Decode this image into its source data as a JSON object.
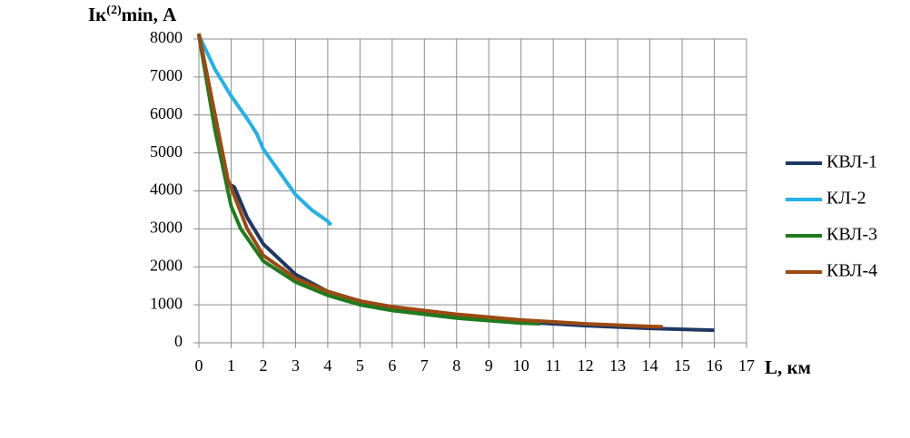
{
  "chart_data": {
    "type": "line",
    "ylabel_parts": [
      "Iк",
      "(2)",
      "min, А"
    ],
    "xlabel": "L, км",
    "xlim": [
      0,
      17
    ],
    "xticks": [
      0,
      1,
      2,
      3,
      4,
      5,
      6,
      7,
      8,
      9,
      10,
      11,
      12,
      13,
      14,
      15,
      16,
      17
    ],
    "ylim": [
      0,
      8000
    ],
    "yticks": [
      0,
      1000,
      2000,
      3000,
      4000,
      5000,
      6000,
      7000,
      8000
    ],
    "grid": true,
    "legend": "right",
    "series": [
      {
        "name": "КВЛ-1",
        "color": "#1f3864",
        "x": [
          0,
          0.5,
          0.9,
          1.1,
          1.5,
          2,
          2.5,
          3,
          4,
          5,
          6,
          8,
          10,
          12,
          14,
          16
        ],
        "values": [
          8100,
          6000,
          4200,
          4100,
          3300,
          2600,
          2200,
          1800,
          1350,
          1100,
          900,
          700,
          550,
          450,
          380,
          330
        ]
      },
      {
        "name": "КЛ-2",
        "color": "#22b1e8",
        "x": [
          0,
          0.5,
          1,
          1.5,
          1.8,
          2,
          2.5,
          3,
          3.5,
          4,
          4.1
        ],
        "values": [
          8100,
          7200,
          6500,
          5900,
          5500,
          5100,
          4500,
          3900,
          3500,
          3200,
          3100
        ]
      },
      {
        "name": "КВЛ-3",
        "color": "#1e7b1e",
        "x": [
          0,
          0.5,
          0.8,
          1,
          1.3,
          2,
          3,
          4,
          5,
          6,
          8,
          10,
          10.6
        ],
        "values": [
          8100,
          5600,
          4400,
          3600,
          3000,
          2150,
          1600,
          1250,
          1000,
          850,
          650,
          520,
          500
        ]
      },
      {
        "name": "КВЛ-4",
        "color": "#9c4a12",
        "x": [
          0,
          0.5,
          0.9,
          1.5,
          2,
          3,
          4,
          5,
          6,
          8,
          10,
          12,
          14,
          14.4
        ],
        "values": [
          8150,
          6000,
          4300,
          3000,
          2300,
          1700,
          1350,
          1100,
          950,
          750,
          600,
          500,
          430,
          420
        ]
      }
    ]
  }
}
